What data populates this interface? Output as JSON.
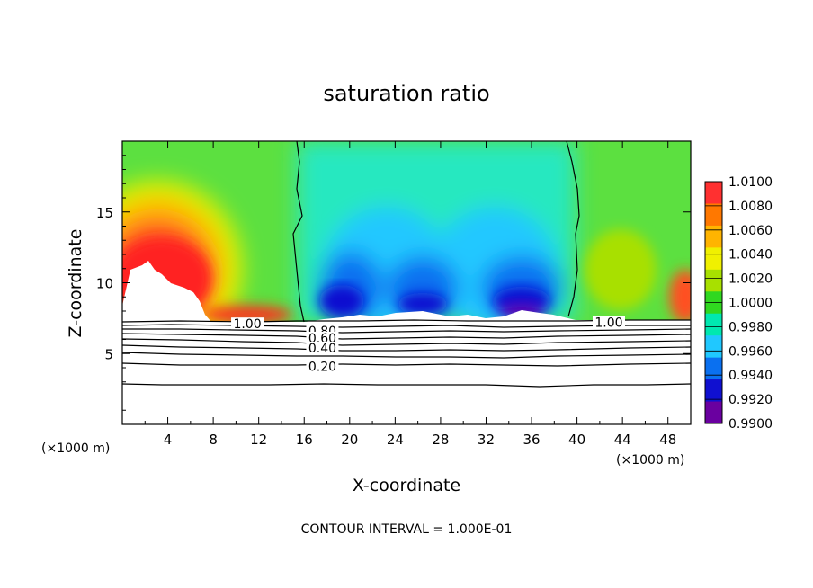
{
  "chart_data": {
    "type": "heatmap",
    "title": "saturation ratio",
    "xlabel": "X-coordinate",
    "ylabel": "Z-coordinate",
    "x_unit_left": "(×1000 m)",
    "x_unit_right": "(×1000 m)",
    "footer": "CONTOUR INTERVAL = 1.000E-01",
    "xlim": [
      0,
      50
    ],
    "ylim": [
      0,
      20
    ],
    "x_ticks": [
      4,
      8,
      12,
      16,
      20,
      24,
      28,
      32,
      36,
      40,
      44,
      48
    ],
    "y_ticks": [
      5,
      10,
      15
    ],
    "colorbar": {
      "labels": [
        "1.0100",
        "1.0080",
        "1.0060",
        "1.0040",
        "1.0020",
        "1.0000",
        "0.9980",
        "0.9960",
        "0.9940",
        "0.9920",
        "0.9900"
      ],
      "values": [
        1.01,
        1.008,
        1.006,
        1.004,
        1.002,
        1.0,
        0.998,
        0.996,
        0.994,
        0.992,
        0.99
      ],
      "colors": [
        "#ff3030",
        "#ff7800",
        "#ffb400",
        "#f0f000",
        "#a8e000",
        "#30d820",
        "#00e8b0",
        "#20c8ff",
        "#0a70f0",
        "#1010d0",
        "#6a00a0"
      ]
    },
    "contour_labels": [
      {
        "text": "1.00",
        "x": 11,
        "z": 7.1
      },
      {
        "text": "0.80",
        "x": 17.6,
        "z": 6.6
      },
      {
        "text": "0.60",
        "x": 17.6,
        "z": 6.1
      },
      {
        "text": "0.40",
        "x": 17.6,
        "z": 5.4
      },
      {
        "text": "0.20",
        "x": 17.6,
        "z": 4.1
      },
      {
        "text": "1.00",
        "x": 42.8,
        "z": 7.2
      }
    ],
    "contour_levels": [
      0.2,
      0.4,
      0.6,
      0.8,
      1.0
    ],
    "grid": false,
    "legend": "colorbar-right"
  }
}
